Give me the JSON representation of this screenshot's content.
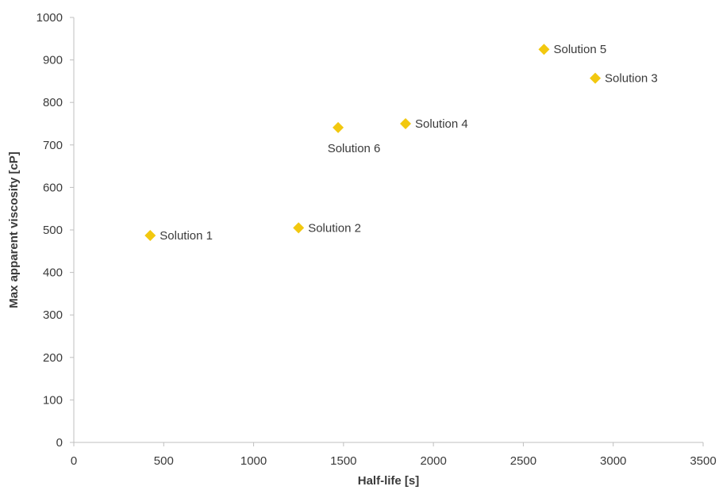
{
  "chart_data": {
    "type": "scatter",
    "title": "",
    "xlabel": "Half-life [s]",
    "ylabel": "Max apparent viscosity [cP]",
    "xlim": [
      0,
      3500
    ],
    "ylim": [
      0,
      1000
    ],
    "xticks": [
      0,
      500,
      1000,
      1500,
      2000,
      2500,
      3000,
      3500
    ],
    "yticks": [
      0,
      100,
      200,
      300,
      400,
      500,
      600,
      700,
      800,
      900,
      1000
    ],
    "grid": false,
    "legend": "none",
    "marker": "diamond",
    "marker_color": "#f2c80f",
    "points": [
      {
        "label": "Solution 1",
        "x": 425,
        "y": 487,
        "label_position": "right"
      },
      {
        "label": "Solution 2",
        "x": 1250,
        "y": 505,
        "label_position": "right"
      },
      {
        "label": "Solution 3",
        "x": 2900,
        "y": 857,
        "label_position": "right"
      },
      {
        "label": "Solution 4",
        "x": 1845,
        "y": 750,
        "label_position": "right"
      },
      {
        "label": "Solution 5",
        "x": 2615,
        "y": 925,
        "label_position": "right"
      },
      {
        "label": "Solution 6",
        "x": 1470,
        "y": 741,
        "label_position": "below"
      }
    ]
  }
}
